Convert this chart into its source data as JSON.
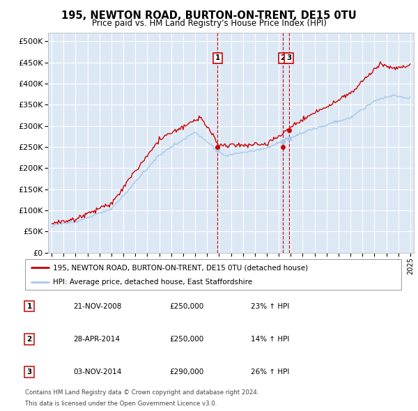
{
  "title": "195, NEWTON ROAD, BURTON-ON-TRENT, DE15 0TU",
  "subtitle": "Price paid vs. HM Land Registry's House Price Index (HPI)",
  "legend_property": "195, NEWTON ROAD, BURTON-ON-TRENT, DE15 0TU (detached house)",
  "legend_hpi": "HPI: Average price, detached house, East Staffordshire",
  "footnote1": "Contains HM Land Registry data © Crown copyright and database right 2024.",
  "footnote2": "This data is licensed under the Open Government Licence v3.0.",
  "sales": [
    {
      "num": 1,
      "date": "21-NOV-2008",
      "price": 250000,
      "hpi_change": "23% ↑ HPI",
      "x": 2008.89
    },
    {
      "num": 2,
      "date": "28-APR-2014",
      "price": 250000,
      "hpi_change": "14% ↑ HPI",
      "x": 2014.33
    },
    {
      "num": 3,
      "date": "03-NOV-2014",
      "price": 290000,
      "hpi_change": "26% ↑ HPI",
      "x": 2014.84
    }
  ],
  "ylim": [
    0,
    520000
  ],
  "xlim_start": 1994.7,
  "xlim_end": 2025.3,
  "background_color": "#dde8f5",
  "grid_color": "#ffffff",
  "line_color_property": "#cc0000",
  "line_color_hpi": "#a8c8e8",
  "sale_dot_color": "#cc0000",
  "hpi_dot_color": "#a8c8e8",
  "vline_color": "#cc0000",
  "title_fontsize": 10.5,
  "subtitle_fontsize": 9
}
